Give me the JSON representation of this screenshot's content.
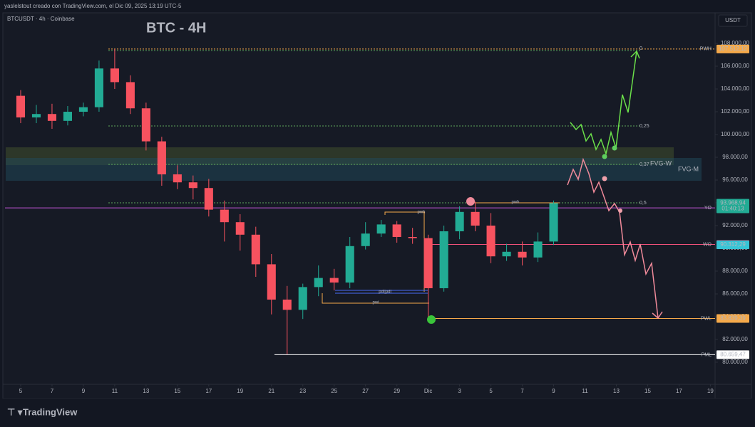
{
  "header": {
    "credit": "yaslelstout creado con TradingView.com, el Dic 09, 2025 13:19 UTC-5",
    "logo": "TradingView"
  },
  "chart_data": {
    "type": "candlestick",
    "title": "BTC - 4H",
    "symbol": "BTCUSDT · 4h · Coinbase",
    "currency": "USDT",
    "up_color": "#22ab94",
    "down_color": "#f7525f",
    "grid": false,
    "x": [
      5,
      6,
      7,
      8,
      9,
      10,
      11,
      12,
      13,
      14,
      15,
      16,
      17,
      18,
      19,
      20,
      21,
      22,
      23,
      24,
      25,
      26,
      27,
      28,
      29,
      30,
      31,
      32,
      33,
      34,
      35,
      36,
      37,
      38,
      39
    ],
    "open": [
      103400,
      101500,
      101800,
      101200,
      102000,
      102400,
      105800,
      104600,
      102300,
      99400,
      96500,
      95800,
      95300,
      93400,
      92300,
      91200,
      88600,
      85500,
      84600,
      86600,
      87400,
      87000,
      90200,
      91300,
      92100,
      91000,
      90900,
      86500,
      91500,
      93200,
      92000,
      89300,
      89700,
      89200,
      90600
    ],
    "high": [
      103900,
      102600,
      102700,
      102500,
      102800,
      106500,
      107500,
      105200,
      102800,
      99800,
      97300,
      96400,
      96100,
      94200,
      93000,
      91900,
      89500,
      86700,
      86900,
      88500,
      88200,
      91000,
      92300,
      92500,
      92400,
      91800,
      91200,
      92000,
      93700,
      94100,
      93100,
      90400,
      90600,
      91400,
      94200
    ],
    "low": [
      101000,
      101000,
      100500,
      100800,
      101600,
      102000,
      104000,
      101800,
      98600,
      95500,
      95200,
      94300,
      92800,
      90600,
      89800,
      87500,
      84200,
      80700,
      83800,
      85800,
      86300,
      86500,
      89900,
      91000,
      90500,
      90400,
      84000,
      86200,
      90800,
      91500,
      88700,
      88900,
      88500,
      88800,
      90300
    ],
    "close": [
      101500,
      101800,
      101200,
      102000,
      102400,
      105800,
      104600,
      102300,
      99400,
      96500,
      95800,
      95300,
      93400,
      92300,
      91200,
      88600,
      85500,
      84600,
      86600,
      87400,
      87000,
      90200,
      91300,
      92100,
      91000,
      90900,
      86500,
      91500,
      93200,
      92000,
      89300,
      89700,
      89200,
      90600,
      93968.94
    ],
    "xlim": [
      4,
      49.3
    ],
    "xticks": [
      5,
      7,
      9,
      11,
      13,
      15,
      17,
      19,
      21,
      23,
      25,
      27,
      29,
      {
        "value": 31,
        "label": "Dic"
      },
      {
        "value": 33,
        "label": "3"
      },
      {
        "value": 35,
        "label": "5"
      },
      {
        "value": 37,
        "label": "7"
      },
      {
        "value": 39,
        "label": "9"
      },
      {
        "value": 41,
        "label": "11"
      },
      {
        "value": 43,
        "label": "13"
      },
      {
        "value": 45,
        "label": "15"
      },
      {
        "value": 47,
        "label": "17"
      },
      {
        "value": 49,
        "label": "19"
      }
    ],
    "ylim": [
      78060,
      110440
    ],
    "yticks": [
      {
        "value": 80000,
        "label": "80.000,00"
      },
      {
        "value": 82000,
        "label": "82.000,00"
      },
      {
        "value": 84000,
        "label": "84.000,00"
      },
      {
        "value": 86000,
        "label": "86.000,00"
      },
      {
        "value": 88000,
        "label": "88.000,00"
      },
      {
        "value": 90000,
        "label": "90.000,00"
      },
      {
        "value": 92000,
        "label": "92.000,00"
      },
      {
        "value": 94000,
        "label": "94.000,00"
      },
      {
        "value": 96000,
        "label": "96.000,00"
      },
      {
        "value": 98000,
        "label": "98.000,00"
      },
      {
        "value": 100000,
        "label": "100.000,00"
      },
      {
        "value": 102000,
        "label": "102.000,00"
      },
      {
        "value": 104000,
        "label": "104.000,00"
      },
      {
        "value": 106000,
        "label": "106.000,00"
      },
      {
        "value": 108000,
        "label": "108.000,00"
      }
    ],
    "levels": [
      {
        "label": "PWH",
        "value": 107512.12,
        "value_label": "107.512,12",
        "color": "#f5a94a"
      },
      {
        "label": "YO",
        "value": 93551.63,
        "value_label": "93.551,63",
        "color": "#c054d6"
      },
      {
        "label": "WO",
        "value": 90339.37,
        "value_label": "90.339,37",
        "color": "#f0507a"
      },
      {
        "label": "PWL",
        "value": 83839.39,
        "value_label": "83.839,39",
        "color": "#f5a94a"
      },
      {
        "label": "PML",
        "value": 80659.47,
        "value_label": "80.659,47",
        "color": "#ffffff"
      }
    ],
    "price_tags": [
      {
        "value": 93968.94,
        "label": "93.968,94",
        "color": "#22ab94"
      },
      {
        "value": 90312.29,
        "label": "90.312,29",
        "color": "#36c5d6"
      }
    ],
    "countdown": "01:40:13",
    "fib_labels": [
      "0",
      "0,25",
      "0,37",
      "0,5"
    ],
    "zones": [
      "FVG-W",
      "FVG-M"
    ],
    "annotations": [
      "pwh",
      "pdl|pdl",
      "pwi",
      "pwh"
    ]
  }
}
